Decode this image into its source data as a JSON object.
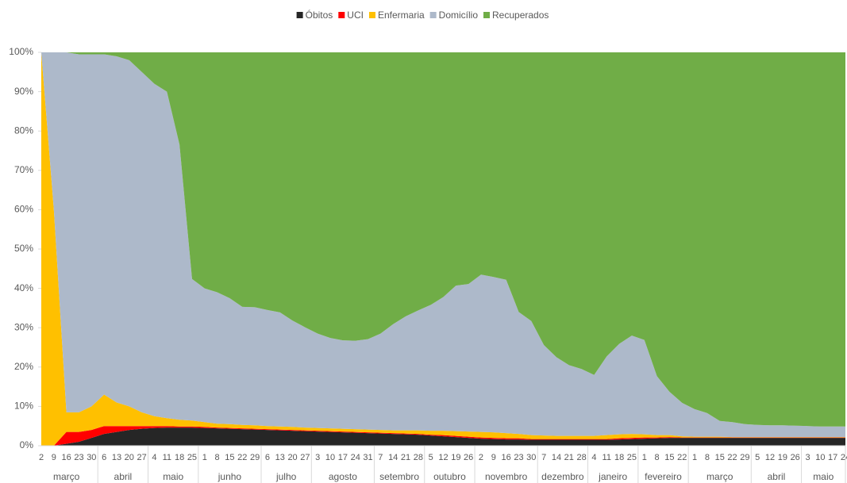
{
  "chart_data": {
    "type": "stacked_area_100",
    "categories": [
      "2",
      "9",
      "16",
      "23",
      "30",
      "6",
      "13",
      "20",
      "27",
      "4",
      "11",
      "18",
      "25",
      "1",
      "8",
      "15",
      "22",
      "29",
      "6",
      "13",
      "20",
      "27",
      "3",
      "10",
      "17",
      "24",
      "31",
      "7",
      "14",
      "21",
      "28",
      "5",
      "12",
      "19",
      "26",
      "2",
      "9",
      "16",
      "23",
      "30",
      "7",
      "14",
      "21",
      "28",
      "4",
      "11",
      "18",
      "25",
      "1",
      "8",
      "15",
      "22",
      "1",
      "8",
      "15",
      "22",
      "29",
      "5",
      "12",
      "19",
      "26",
      "3",
      "10",
      "17",
      "24"
    ],
    "groups": [
      {
        "label": "março",
        "size": 5
      },
      {
        "label": "abril",
        "size": 4
      },
      {
        "label": "maio",
        "size": 4
      },
      {
        "label": "junho",
        "size": 5
      },
      {
        "label": "julho",
        "size": 4
      },
      {
        "label": "agosto",
        "size": 5
      },
      {
        "label": "setembro",
        "size": 4
      },
      {
        "label": "outubro",
        "size": 4
      },
      {
        "label": "novembro",
        "size": 5
      },
      {
        "label": "dezembro",
        "size": 4
      },
      {
        "label": "janeiro",
        "size": 4
      },
      {
        "label": "fevereiro",
        "size": 4
      },
      {
        "label": "março",
        "size": 5
      },
      {
        "label": "abril",
        "size": 4
      },
      {
        "label": "maio",
        "size": 4
      }
    ],
    "series": [
      {
        "name": "Óbitos",
        "color": "#262626",
        "values": [
          0,
          0,
          0.5,
          1,
          2,
          3,
          3.5,
          4,
          4.3,
          4.5,
          4.6,
          4.6,
          4.6,
          4.5,
          4.4,
          4.3,
          4.2,
          4.1,
          4,
          3.9,
          3.8,
          3.7,
          3.6,
          3.5,
          3.4,
          3.3,
          3.2,
          3.1,
          3,
          2.9,
          2.8,
          2.6,
          2.4,
          2.2,
          2,
          1.8,
          1.7,
          1.6,
          1.6,
          1.5,
          1.5,
          1.5,
          1.5,
          1.5,
          1.5,
          1.5,
          1.6,
          1.7,
          1.8,
          1.9,
          2,
          2,
          2,
          2,
          2,
          2,
          2,
          2,
          2,
          2,
          2,
          2,
          2,
          2,
          2
        ]
      },
      {
        "name": "UCI",
        "color": "#ff0000",
        "values": [
          0,
          0,
          3,
          2.5,
          2,
          2,
          1.5,
          1,
          0.7,
          0.5,
          0.4,
          0.3,
          0.3,
          0.3,
          0.2,
          0.2,
          0.2,
          0.2,
          0.2,
          0.2,
          0.2,
          0.2,
          0.2,
          0.2,
          0.2,
          0.2,
          0.2,
          0.2,
          0.2,
          0.2,
          0.2,
          0.2,
          0.3,
          0.3,
          0.3,
          0.3,
          0.3,
          0.3,
          0.3,
          0.2,
          0.2,
          0.2,
          0.2,
          0.2,
          0.2,
          0.2,
          0.3,
          0.3,
          0.3,
          0.2,
          0.2,
          0.1,
          0.1,
          0.1,
          0.1,
          0.1,
          0.1,
          0.1,
          0.1,
          0.1,
          0.1,
          0.1,
          0.1,
          0.1,
          0.1
        ]
      },
      {
        "name": "Enfermaria",
        "color": "#ffc000",
        "values": [
          100,
          60,
          5,
          5,
          6,
          8,
          6,
          5,
          3.5,
          2.5,
          2,
          1.7,
          1.5,
          1.2,
          1,
          1,
          0.9,
          0.9,
          0.8,
          0.8,
          0.8,
          0.7,
          0.7,
          0.7,
          0.7,
          0.7,
          0.7,
          0.7,
          0.7,
          0.8,
          0.9,
          1,
          1.1,
          1.2,
          1.3,
          1.4,
          1.4,
          1.3,
          1.1,
          1,
          0.9,
          0.8,
          0.8,
          0.8,
          0.8,
          1,
          1,
          1,
          0.8,
          0.6,
          0.5,
          0.3,
          0.2,
          0.2,
          0.2,
          0.1,
          0.1,
          0.1,
          0.1,
          0.1,
          0.1,
          0.1,
          0.1,
          0.1,
          0.1
        ]
      },
      {
        "name": "Domicílio",
        "color": "#adb9ca",
        "values": [
          0,
          40,
          91.5,
          91,
          89.5,
          86.5,
          88,
          88,
          86.5,
          84.5,
          83,
          70,
          36,
          34,
          33.4,
          32,
          30,
          30,
          29.5,
          29,
          27,
          25.5,
          24,
          23,
          22.5,
          22.5,
          23,
          24.5,
          27,
          29,
          30.5,
          32,
          34,
          37,
          37.5,
          40,
          39.5,
          39,
          31,
          29,
          23,
          20,
          18,
          17,
          15.5,
          20,
          23,
          25,
          24,
          15,
          11,
          8.5,
          7,
          6,
          4,
          3.8,
          3.3,
          3.1,
          3,
          3,
          2.9,
          2.8,
          2.7,
          2.7,
          2.7
        ]
      },
      {
        "name": "Recuperados",
        "color": "#70ad47",
        "values": [
          0,
          0,
          0,
          0.5,
          0.5,
          0.5,
          1,
          2,
          5,
          8,
          10,
          23.4,
          57.6,
          60,
          61,
          62.5,
          64.7,
          64.8,
          65.5,
          66.1,
          68.2,
          69.9,
          71.5,
          72.6,
          73.2,
          73.3,
          72.9,
          71.5,
          69.1,
          67.1,
          65.6,
          64.2,
          62.2,
          59.3,
          58.9,
          56.5,
          57.1,
          57.8,
          66,
          68.3,
          74.4,
          77.5,
          79.5,
          80.5,
          82,
          77.3,
          74.1,
          72,
          73.1,
          82.3,
          86.3,
          89.1,
          90.7,
          91.7,
          93.7,
          94,
          94.5,
          94.7,
          94.8,
          94.8,
          94.9,
          95,
          95.1,
          95.1,
          95.1
        ]
      }
    ],
    "ylim": [
      0,
      100
    ],
    "yticks": [
      {
        "value": 0,
        "label": "0%"
      },
      {
        "value": 10,
        "label": "10%"
      },
      {
        "value": 20,
        "label": "20%"
      },
      {
        "value": 30,
        "label": "30%"
      },
      {
        "value": 40,
        "label": "40%"
      },
      {
        "value": 50,
        "label": "50%"
      },
      {
        "value": 60,
        "label": "60%"
      },
      {
        "value": 70,
        "label": "70%"
      },
      {
        "value": 80,
        "label": "80%"
      },
      {
        "value": 90,
        "label": "90%"
      },
      {
        "value": 100,
        "label": "100%"
      }
    ],
    "legend": "top"
  }
}
